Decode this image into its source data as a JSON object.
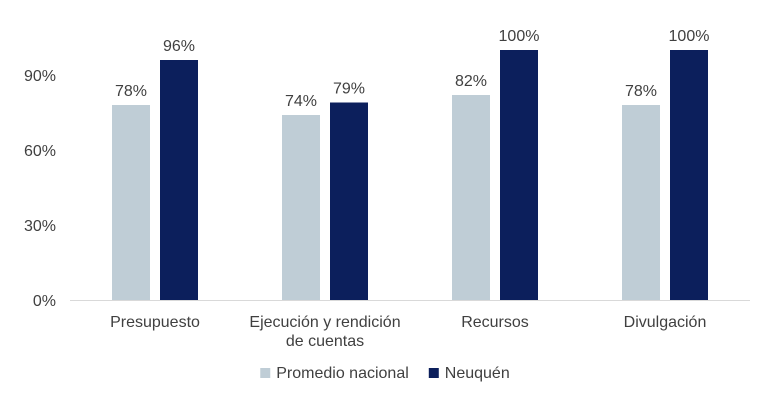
{
  "chart_data": {
    "type": "bar",
    "categories": [
      [
        "Presupuesto"
      ],
      [
        "Ejecución y rendición",
        "de cuentas"
      ],
      [
        "Recursos"
      ],
      [
        "Divulgación"
      ]
    ],
    "series": [
      {
        "name": "Promedio nacional",
        "values": [
          78,
          74,
          82,
          78
        ],
        "labels": [
          "78%",
          "74%",
          "82%",
          "78%"
        ]
      },
      {
        "name": "Neuquén",
        "values": [
          96,
          79,
          100,
          100
        ],
        "labels": [
          "96%",
          "79%",
          "100%",
          "100%"
        ]
      }
    ],
    "yticks": [
      0,
      30,
      60,
      90
    ],
    "ytick_labels": [
      "0%",
      "30%",
      "60%",
      "90%"
    ],
    "ylim": [
      0,
      100
    ],
    "legend_position": "bottom",
    "grid": false,
    "colors": {
      "series": [
        "#BFCDD6",
        "#0C1F5C"
      ],
      "axis": "#D9D9D9",
      "text": "#404040"
    }
  }
}
